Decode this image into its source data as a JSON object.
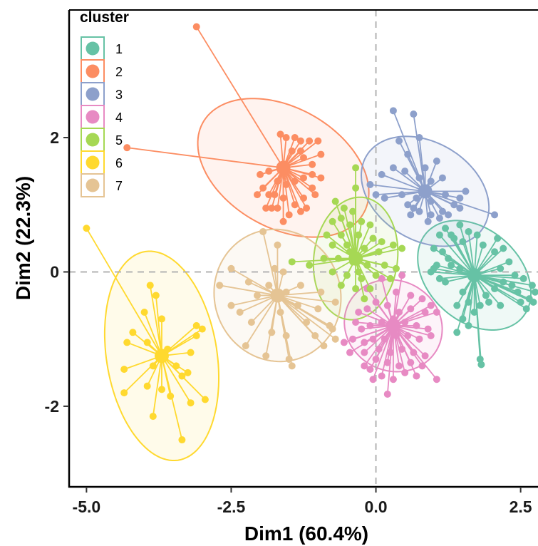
{
  "chart_data": {
    "type": "scatter",
    "xlabel": "Dim1 (60.4%)",
    "ylabel": "Dim2 (22.3%)",
    "xlim": [
      -5.3,
      2.8
    ],
    "ylim": [
      -3.2,
      3.9
    ],
    "x_ticks": [
      -5.0,
      -2.5,
      0.0,
      2.5
    ],
    "x_tick_labels": [
      "-5.0",
      "-2.5",
      "0.0",
      "2.5"
    ],
    "y_ticks": [
      2,
      0,
      -2
    ],
    "y_tick_labels": [
      "2",
      "0",
      "-2"
    ],
    "reference_lines": {
      "x": 0,
      "y": 0,
      "style": "dashed",
      "color": "#b3b3b3"
    },
    "grid": false,
    "legend": {
      "title": "cluster",
      "position": "top-left-inside"
    },
    "series": [
      {
        "name": "1",
        "color": "#66c2a5",
        "center": [
          1.7,
          -0.05
        ],
        "ellipse": {
          "rx": 1.05,
          "ry": 0.72,
          "angle_deg": -30
        },
        "points": [
          [
            1.2,
            0.65
          ],
          [
            1.45,
            0.7
          ],
          [
            1.35,
            0.5
          ],
          [
            1.1,
            0.55
          ],
          [
            1.0,
            0.35
          ],
          [
            1.15,
            0.3
          ],
          [
            1.25,
            0.2
          ],
          [
            1.05,
            0.1
          ],
          [
            1.0,
            0.05
          ],
          [
            0.95,
            0.0
          ],
          [
            1.1,
            -0.1
          ],
          [
            1.2,
            -0.15
          ],
          [
            1.3,
            0.55
          ],
          [
            1.5,
            0.45
          ],
          [
            1.6,
            0.6
          ],
          [
            1.75,
            0.55
          ],
          [
            1.85,
            0.4
          ],
          [
            2.1,
            0.5
          ],
          [
            2.05,
            0.3
          ],
          [
            2.2,
            0.35
          ],
          [
            2.3,
            0.15
          ],
          [
            2.15,
            0.05
          ],
          [
            2.4,
            -0.05
          ],
          [
            2.55,
            -0.1
          ],
          [
            2.7,
            -0.2
          ],
          [
            2.75,
            -0.3
          ],
          [
            2.65,
            -0.4
          ],
          [
            2.6,
            -0.55
          ],
          [
            2.45,
            -0.3
          ],
          [
            2.35,
            -0.2
          ],
          [
            2.2,
            -0.15
          ],
          [
            2.05,
            -0.25
          ],
          [
            1.9,
            -0.35
          ],
          [
            1.8,
            -0.5
          ],
          [
            1.7,
            -0.6
          ],
          [
            1.6,
            -0.45
          ],
          [
            1.5,
            -0.3
          ],
          [
            1.4,
            -0.5
          ],
          [
            1.5,
            -0.7
          ],
          [
            1.4,
            -0.9
          ],
          [
            1.8,
            -1.3
          ],
          [
            1.82,
            -1.38
          ],
          [
            1.6,
            -0.8
          ],
          [
            1.95,
            -0.45
          ],
          [
            2.15,
            -0.5
          ],
          [
            1.3,
            0.1
          ],
          [
            1.45,
            0.05
          ],
          [
            2.5,
            -0.45
          ],
          [
            2.72,
            -0.45
          ]
        ]
      },
      {
        "name": "2",
        "color": "#fc8d62",
        "center": [
          -1.6,
          1.55
        ],
        "ellipse": {
          "rx": 1.55,
          "ry": 0.92,
          "angle_deg": -22
        },
        "points": [
          [
            -3.1,
            3.65
          ],
          [
            -4.3,
            1.85
          ],
          [
            -1.65,
            2.05
          ],
          [
            -1.55,
            2.0
          ],
          [
            -1.4,
            2.0
          ],
          [
            -1.3,
            1.95
          ],
          [
            -1.15,
            1.95
          ],
          [
            -1.0,
            1.95
          ],
          [
            -1.3,
            1.8
          ],
          [
            -1.45,
            1.8
          ],
          [
            -1.25,
            1.7
          ],
          [
            -1.1,
            1.6
          ],
          [
            -0.95,
            1.75
          ],
          [
            -1.1,
            1.45
          ],
          [
            -1.25,
            1.4
          ],
          [
            -1.4,
            1.35
          ],
          [
            -1.55,
            1.3
          ],
          [
            -1.7,
            1.35
          ],
          [
            -1.85,
            1.5
          ],
          [
            -2.0,
            1.45
          ],
          [
            -1.95,
            1.25
          ],
          [
            -1.75,
            1.15
          ],
          [
            -1.6,
            1.1
          ],
          [
            -1.4,
            1.0
          ],
          [
            -1.25,
            1.1
          ],
          [
            -1.1,
            1.25
          ],
          [
            -0.95,
            1.4
          ],
          [
            -1.05,
            1.15
          ],
          [
            -1.2,
            0.95
          ],
          [
            -1.3,
            0.9
          ],
          [
            -1.5,
            0.85
          ],
          [
            -1.7,
            0.95
          ],
          [
            -1.85,
            1.15
          ],
          [
            -2.05,
            1.15
          ],
          [
            -1.6,
            0.75
          ],
          [
            -1.8,
            0.95
          ],
          [
            -1.9,
            0.95
          ]
        ]
      },
      {
        "name": "3",
        "color": "#8da0cb",
        "center": [
          0.85,
          1.2
        ],
        "ellipse": {
          "rx": 1.15,
          "ry": 0.75,
          "angle_deg": -22
        },
        "points": [
          [
            0.3,
            2.4
          ],
          [
            0.65,
            2.35
          ],
          [
            0.75,
            2.0
          ],
          [
            0.4,
            1.95
          ],
          [
            0.55,
            1.75
          ],
          [
            0.85,
            1.55
          ],
          [
            1.05,
            1.65
          ],
          [
            1.15,
            1.4
          ],
          [
            0.95,
            1.35
          ],
          [
            0.75,
            1.4
          ],
          [
            0.5,
            1.5
          ],
          [
            0.3,
            1.55
          ],
          [
            0.1,
            1.45
          ],
          [
            -0.1,
            1.3
          ],
          [
            0.0,
            1.15
          ],
          [
            0.15,
            1.1
          ],
          [
            0.45,
            1.15
          ],
          [
            0.7,
            1.1
          ],
          [
            0.95,
            1.05
          ],
          [
            1.2,
            1.15
          ],
          [
            1.45,
            1.1
          ],
          [
            1.55,
            1.2
          ],
          [
            1.35,
            1.0
          ],
          [
            1.15,
            0.9
          ],
          [
            0.95,
            0.85
          ],
          [
            0.75,
            0.9
          ],
          [
            0.6,
            0.85
          ],
          [
            0.55,
            1.0
          ],
          [
            0.9,
            0.75
          ],
          [
            1.1,
            0.8
          ],
          [
            1.25,
            0.85
          ],
          [
            2.05,
            0.85
          ],
          [
            1.45,
            0.95
          ],
          [
            0.65,
            0.95
          ]
        ]
      },
      {
        "name": "4",
        "color": "#e78ac3",
        "center": [
          0.3,
          -0.8
        ],
        "ellipse": {
          "rx": 0.85,
          "ry": 0.68,
          "angle_deg": -10
        },
        "points": [
          [
            0.45,
            -0.05
          ],
          [
            0.1,
            -0.1
          ],
          [
            -0.15,
            -0.25
          ],
          [
            0.35,
            -0.3
          ],
          [
            0.6,
            -0.35
          ],
          [
            0.8,
            -0.4
          ],
          [
            0.95,
            -0.5
          ],
          [
            1.05,
            -0.6
          ],
          [
            0.85,
            -0.6
          ],
          [
            0.6,
            -0.55
          ],
          [
            0.4,
            -0.6
          ],
          [
            0.2,
            -0.5
          ],
          [
            0.0,
            -0.45
          ],
          [
            -0.15,
            -0.55
          ],
          [
            -0.3,
            -0.6
          ],
          [
            -0.35,
            -0.75
          ],
          [
            -0.25,
            -0.85
          ],
          [
            -0.1,
            -0.8
          ],
          [
            0.1,
            -0.75
          ],
          [
            0.3,
            -0.7
          ],
          [
            0.5,
            -0.75
          ],
          [
            0.7,
            -0.8
          ],
          [
            0.9,
            -0.85
          ],
          [
            0.95,
            -0.95
          ],
          [
            0.75,
            -1.0
          ],
          [
            0.55,
            -0.95
          ],
          [
            0.35,
            -0.95
          ],
          [
            0.15,
            -1.0
          ],
          [
            -0.05,
            -1.0
          ],
          [
            -0.2,
            -1.05
          ],
          [
            -0.4,
            -1.0
          ],
          [
            -0.55,
            -1.05
          ],
          [
            -0.45,
            -1.2
          ],
          [
            -0.2,
            -1.2
          ],
          [
            0.05,
            -1.15
          ],
          [
            0.25,
            -1.2
          ],
          [
            0.45,
            -1.15
          ],
          [
            0.65,
            -1.2
          ],
          [
            0.85,
            -1.25
          ],
          [
            0.8,
            -1.4
          ],
          [
            0.6,
            -1.35
          ],
          [
            0.4,
            -1.4
          ],
          [
            0.2,
            -1.35
          ],
          [
            0.0,
            -1.3
          ],
          [
            -0.2,
            -1.4
          ],
          [
            -0.1,
            -1.45
          ],
          [
            0.1,
            -1.55
          ],
          [
            0.3,
            -1.6
          ],
          [
            0.5,
            -1.5
          ],
          [
            0.7,
            -1.55
          ],
          [
            1.05,
            -1.6
          ],
          [
            0.2,
            -1.82
          ],
          [
            -0.05,
            -1.6
          ]
        ]
      },
      {
        "name": "5",
        "color": "#a6d854",
        "center": [
          -0.35,
          0.2
        ],
        "ellipse": {
          "rx": 0.72,
          "ry": 0.92,
          "angle_deg": -12
        },
        "points": [
          [
            -0.35,
            1.55
          ],
          [
            -0.35,
            1.25
          ],
          [
            -0.7,
            1.05
          ],
          [
            -0.55,
            0.95
          ],
          [
            -0.4,
            0.9
          ],
          [
            -0.6,
            0.8
          ],
          [
            -0.75,
            0.75
          ],
          [
            -0.45,
            0.7
          ],
          [
            -0.25,
            0.75
          ],
          [
            -0.1,
            0.7
          ],
          [
            -0.85,
            0.55
          ],
          [
            -0.6,
            0.55
          ],
          [
            -0.3,
            0.55
          ],
          [
            -0.05,
            0.5
          ],
          [
            0.1,
            0.45
          ],
          [
            -0.75,
            0.4
          ],
          [
            -0.5,
            0.4
          ],
          [
            -0.2,
            0.35
          ],
          [
            0.05,
            0.3
          ],
          [
            0.3,
            0.4
          ],
          [
            -0.9,
            0.2
          ],
          [
            -0.65,
            0.2
          ],
          [
            -0.4,
            0.15
          ],
          [
            -0.15,
            0.1
          ],
          [
            0.15,
            0.1
          ],
          [
            0.35,
            0.05
          ],
          [
            -1.45,
            0.15
          ],
          [
            -0.75,
            0.0
          ],
          [
            -0.5,
            -0.05
          ],
          [
            -0.25,
            -0.1
          ],
          [
            0.0,
            -0.05
          ],
          [
            0.25,
            -0.1
          ],
          [
            -0.6,
            -0.2
          ],
          [
            -0.35,
            -0.25
          ],
          [
            -0.1,
            -0.25
          ],
          [
            -1.15,
            0.1
          ],
          [
            -0.2,
            -0.4
          ],
          [
            -0.45,
            0.3
          ],
          [
            0.45,
            0.35
          ],
          [
            -0.3,
            0.0
          ]
        ]
      },
      {
        "name": "6",
        "color": "#ffd92f",
        "center": [
          -3.7,
          -1.25
        ],
        "ellipse": {
          "rx": 1.58,
          "ry": 0.95,
          "angle_deg": -78
        },
        "points": [
          [
            -5.0,
            0.65
          ],
          [
            -3.9,
            -0.2
          ],
          [
            -3.8,
            -0.35
          ],
          [
            -4.0,
            -0.6
          ],
          [
            -3.7,
            -0.7
          ],
          [
            -4.2,
            -0.9
          ],
          [
            -3.1,
            -0.8
          ],
          [
            -3.0,
            -0.85
          ],
          [
            -3.1,
            -0.95
          ],
          [
            -4.3,
            -1.05
          ],
          [
            -3.95,
            -1.05
          ],
          [
            -3.6,
            -1.15
          ],
          [
            -3.2,
            -1.2
          ],
          [
            -4.35,
            -1.45
          ],
          [
            -3.85,
            -1.4
          ],
          [
            -3.45,
            -1.4
          ],
          [
            -3.25,
            -1.5
          ],
          [
            -3.35,
            -1.55
          ],
          [
            -3.95,
            -1.7
          ],
          [
            -3.7,
            -1.75
          ],
          [
            -4.35,
            -1.8
          ],
          [
            -3.55,
            -1.85
          ],
          [
            -3.2,
            -1.95
          ],
          [
            -2.95,
            -1.9
          ],
          [
            -3.85,
            -2.15
          ],
          [
            -3.35,
            -2.5
          ]
        ]
      },
      {
        "name": "7",
        "color": "#e5c494",
        "center": [
          -1.7,
          -0.35
        ],
        "ellipse": {
          "rx": 1.1,
          "ry": 0.98,
          "angle_deg": -10
        },
        "points": [
          [
            -1.95,
            0.6
          ],
          [
            -1.7,
            0.4
          ],
          [
            -2.5,
            0.05
          ],
          [
            -1.75,
            0.05
          ],
          [
            -1.6,
            0.0
          ],
          [
            -2.2,
            -0.15
          ],
          [
            -1.85,
            -0.2
          ],
          [
            -1.55,
            -0.3
          ],
          [
            -2.7,
            -0.2
          ],
          [
            -2.05,
            -0.35
          ],
          [
            -1.3,
            -0.2
          ],
          [
            -0.95,
            -0.3
          ],
          [
            -2.5,
            -0.5
          ],
          [
            -1.35,
            -0.5
          ],
          [
            -1.0,
            -0.55
          ],
          [
            -0.7,
            -0.45
          ],
          [
            -2.35,
            -0.6
          ],
          [
            -1.65,
            -0.6
          ],
          [
            -2.15,
            -0.75
          ],
          [
            -1.2,
            -0.75
          ],
          [
            -0.8,
            -0.8
          ],
          [
            -1.8,
            -0.9
          ],
          [
            -1.55,
            -0.95
          ],
          [
            -1.05,
            -0.95
          ],
          [
            -0.75,
            -0.85
          ],
          [
            -0.7,
            -1.0
          ],
          [
            -2.25,
            -1.1
          ],
          [
            -1.9,
            -1.25
          ],
          [
            -1.5,
            -1.3
          ],
          [
            -1.45,
            -1.4
          ],
          [
            -0.9,
            -1.1
          ]
        ]
      }
    ]
  }
}
